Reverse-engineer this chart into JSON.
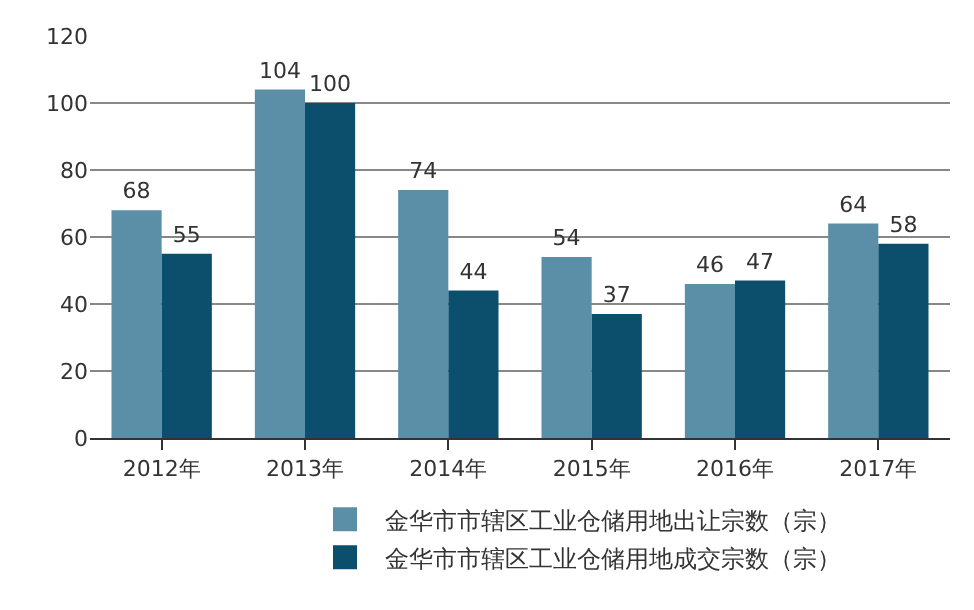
{
  "chart_data": {
    "type": "bar",
    "categories": [
      "2012年",
      "2013年",
      "2014年",
      "2015年",
      "2016年",
      "2017年"
    ],
    "series": [
      {
        "name": "金华市市辖区工业仓储用地出让宗数（宗）",
        "color": "#5b8fa8",
        "values": [
          68,
          104,
          74,
          54,
          46,
          64
        ]
      },
      {
        "name": "金华市市辖区工业仓储用地成交宗数（宗）",
        "color": "#0b4f6c",
        "values": [
          55,
          100,
          44,
          37,
          47,
          58
        ]
      }
    ],
    "ylim": [
      0,
      120
    ],
    "yticks": [
      0,
      20,
      40,
      60,
      80,
      100,
      120
    ],
    "grid": "y",
    "legend": "bottom",
    "data_labels": true
  }
}
